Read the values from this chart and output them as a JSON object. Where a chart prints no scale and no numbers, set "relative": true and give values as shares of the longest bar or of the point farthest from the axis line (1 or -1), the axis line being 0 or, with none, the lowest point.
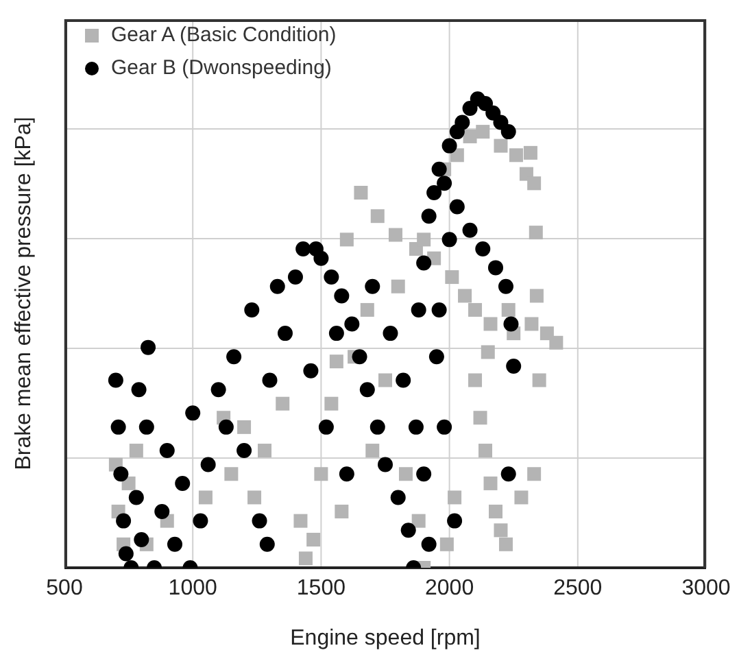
{
  "chart_data": {
    "type": "scatter",
    "xlabel": "Engine speed [rpm]",
    "ylabel": "Brake mean effective pressure [kPa]",
    "relative": true,
    "xlim": [
      500,
      3000
    ],
    "xticks": [
      500,
      1000,
      1500,
      2000,
      2500,
      3000
    ],
    "grid": true,
    "legend": "top left",
    "series": [
      {
        "name": "Gear A (Basic Condition)",
        "color": "#b4b4b4",
        "marker": "square",
        "x": [
          700,
          710,
          730,
          750,
          780,
          820,
          900,
          1050,
          1120,
          1150,
          1200,
          1240,
          1280,
          1350,
          1420,
          1440,
          1470,
          1500,
          1540,
          1560,
          1580,
          1600,
          1630,
          1655,
          1680,
          1700,
          1720,
          1750,
          1790,
          1800,
          1830,
          1870,
          1900,
          1940,
          1980,
          2010,
          2030,
          2060,
          2080,
          2100,
          2130,
          2160,
          2200,
          2230,
          2260,
          2300,
          2316,
          2330,
          2337,
          2340,
          2350,
          2416,
          2380,
          2320,
          2250,
          2150,
          2100,
          2120,
          2140,
          2160,
          2180,
          2200,
          2220,
          2330,
          2280,
          1990,
          2020,
          1900,
          1880
        ],
        "values": [
          0.22,
          0.12,
          0.05,
          0.18,
          0.25,
          0.05,
          0.1,
          0.15,
          0.32,
          0.2,
          0.3,
          0.15,
          0.25,
          0.35,
          0.1,
          0.02,
          0.06,
          0.2,
          0.35,
          0.44,
          0.12,
          0.7,
          0.45,
          0.8,
          0.55,
          0.25,
          0.75,
          0.4,
          0.71,
          0.6,
          0.2,
          0.68,
          0.7,
          0.66,
          0.85,
          0.62,
          0.88,
          0.58,
          0.92,
          0.55,
          0.93,
          0.52,
          0.9,
          0.55,
          0.88,
          0.84,
          0.885,
          0.82,
          0.715,
          0.58,
          0.4,
          0.48,
          0.5,
          0.52,
          0.5,
          0.46,
          0.4,
          0.32,
          0.25,
          0.18,
          0.12,
          0.08,
          0.05,
          0.2,
          0.15,
          0.05,
          0.15,
          0.0,
          0.1
        ]
      },
      {
        "name": "Gear B (Dwonspeeding)",
        "color": "#000000",
        "marker": "circle",
        "x": [
          700,
          710,
          720,
          730,
          740,
          760,
          780,
          790,
          800,
          820,
          826,
          850,
          880,
          900,
          930,
          960,
          990,
          1000,
          1030,
          1060,
          1100,
          1130,
          1160,
          1200,
          1230,
          1260,
          1290,
          1300,
          1330,
          1360,
          1400,
          1430,
          1460,
          1480,
          1500,
          1520,
          1540,
          1560,
          1580,
          1600,
          1620,
          1650,
          1680,
          1700,
          1720,
          1750,
          1770,
          1800,
          1820,
          1840,
          1860,
          1870,
          1880,
          1900,
          1920,
          1940,
          1960,
          1980,
          2000,
          2030,
          2050,
          2080,
          2110,
          2140,
          2170,
          2200,
          2230,
          1960,
          2000,
          2030,
          2080,
          2130,
          2180,
          2220,
          2240,
          2250,
          2230,
          1950,
          1980,
          2020,
          1900,
          1920
        ],
        "values": [
          0.4,
          0.3,
          0.2,
          0.1,
          0.03,
          0.0,
          0.15,
          0.38,
          0.06,
          0.3,
          0.47,
          0.0,
          0.12,
          0.25,
          0.05,
          0.18,
          0.0,
          0.33,
          0.1,
          0.22,
          0.38,
          0.3,
          0.45,
          0.25,
          0.55,
          0.1,
          0.05,
          0.4,
          0.6,
          0.5,
          0.62,
          0.68,
          0.42,
          0.68,
          0.66,
          0.3,
          0.62,
          0.5,
          0.58,
          0.2,
          0.52,
          0.45,
          0.38,
          0.6,
          0.3,
          0.22,
          0.5,
          0.15,
          0.4,
          0.08,
          0.0,
          0.3,
          0.55,
          0.65,
          0.75,
          0.8,
          0.85,
          0.82,
          0.9,
          0.93,
          0.95,
          0.98,
          1.0,
          0.99,
          0.97,
          0.95,
          0.93,
          0.55,
          0.7,
          0.77,
          0.72,
          0.68,
          0.64,
          0.6,
          0.52,
          0.43,
          0.2,
          0.45,
          0.3,
          0.1,
          0.2,
          0.05
        ]
      }
    ]
  }
}
